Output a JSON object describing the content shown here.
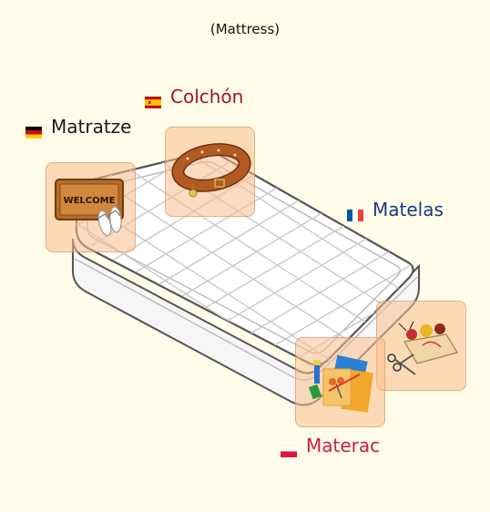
{
  "title": "(Mattress)",
  "labels": {
    "german": "Matratze",
    "spanish": "Colchón",
    "french": "Matelas",
    "polish": "Materac"
  },
  "doormat_text": "WELCOME",
  "colors": {
    "background": "#fffde9",
    "german": "#1a1a1a",
    "spanish": "#a3141c",
    "french": "#1a3a7a",
    "polish": "#c81e3c",
    "tile": "#fcbe8c"
  }
}
